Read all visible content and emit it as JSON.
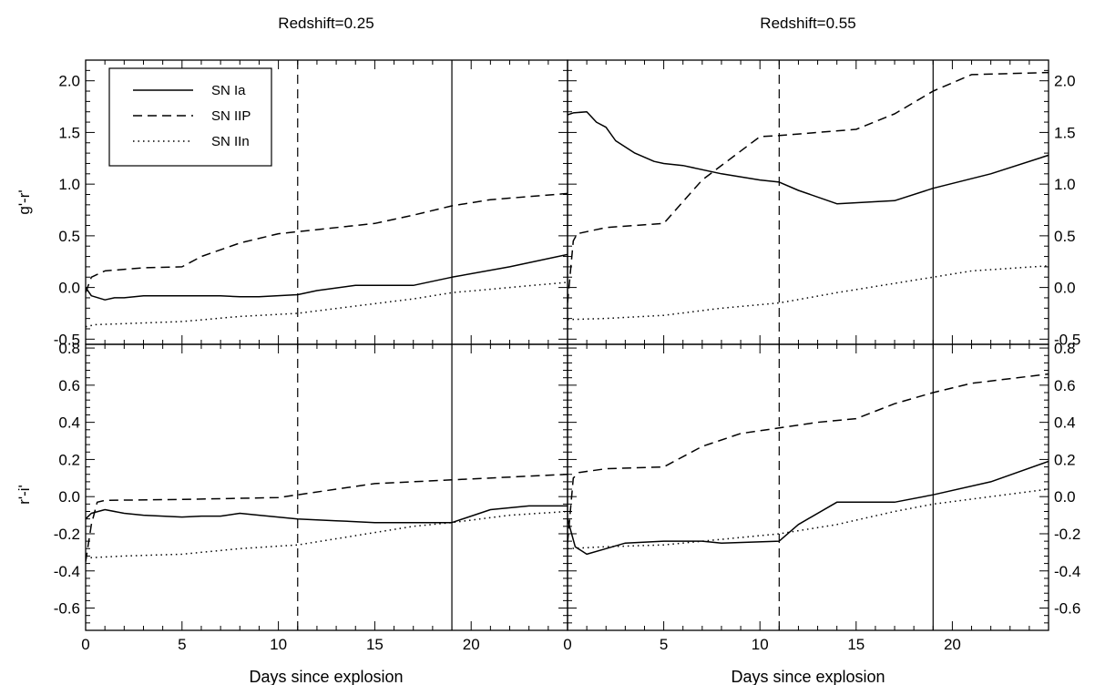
{
  "figure": {
    "title_left": "Redshift=0.25",
    "title_right": "Redshift=0.55",
    "xlabel": "Days since explosion",
    "ylabel_top": "g'-r'",
    "ylabel_bottom": "r'-i'",
    "legend": [
      "SN Ia",
      "SN IIP",
      "SN IIn"
    ]
  },
  "chart_data": [
    {
      "type": "line",
      "panel": "top-left",
      "title": "Redshift=0.25",
      "xlabel": "",
      "ylabel": "g'-r'",
      "xlim": [
        0,
        25
      ],
      "ylim": [
        -0.55,
        2.2
      ],
      "xticks": [
        0,
        5,
        10,
        15,
        20
      ],
      "xticklabels": [
        "",
        "",
        "",
        "",
        ""
      ],
      "yticks": [
        -0.5,
        0.0,
        0.5,
        1.0,
        1.5,
        2.0
      ],
      "yticklabels": [
        "-0.5",
        "0.0",
        "0.5",
        "1.0",
        "1.5",
        "2.0"
      ],
      "vlines": [
        {
          "x": 11,
          "style": "dashed"
        },
        {
          "x": 19,
          "style": "solid"
        }
      ],
      "legend": "top-left",
      "series": [
        {
          "name": "SN Ia",
          "style": "solid",
          "points": [
            [
              0,
              0.0
            ],
            [
              0.3,
              -0.08
            ],
            [
              1,
              -0.12
            ],
            [
              1.5,
              -0.1
            ],
            [
              2,
              -0.1
            ],
            [
              3,
              -0.08
            ],
            [
              5,
              -0.08
            ],
            [
              7,
              -0.08
            ],
            [
              8,
              -0.09
            ],
            [
              9,
              -0.09
            ],
            [
              11,
              -0.07
            ],
            [
              12,
              -0.03
            ],
            [
              14,
              0.02
            ],
            [
              17,
              0.02
            ],
            [
              19,
              0.1
            ],
            [
              22,
              0.2
            ],
            [
              25,
              0.32
            ]
          ]
        },
        {
          "name": "SN IIP",
          "style": "dashed",
          "points": [
            [
              0,
              -0.05
            ],
            [
              0.3,
              0.1
            ],
            [
              1,
              0.16
            ],
            [
              3,
              0.19
            ],
            [
              5,
              0.2
            ],
            [
              6,
              0.3
            ],
            [
              8,
              0.43
            ],
            [
              10,
              0.52
            ],
            [
              12,
              0.56
            ],
            [
              15,
              0.62
            ],
            [
              17,
              0.7
            ],
            [
              19,
              0.79
            ],
            [
              21,
              0.85
            ],
            [
              25,
              0.91
            ]
          ]
        },
        {
          "name": "SN IIn",
          "style": "dotted",
          "points": [
            [
              0,
              -0.38
            ],
            [
              0.5,
              -0.36
            ],
            [
              2,
              -0.35
            ],
            [
              5,
              -0.33
            ],
            [
              8,
              -0.28
            ],
            [
              11,
              -0.25
            ],
            [
              14,
              -0.18
            ],
            [
              17,
              -0.11
            ],
            [
              19,
              -0.05
            ],
            [
              22,
              0.0
            ],
            [
              25,
              0.05
            ]
          ]
        }
      ]
    },
    {
      "type": "line",
      "panel": "top-right",
      "title": "Redshift=0.55",
      "xlabel": "",
      "ylabel": "",
      "xlim": [
        0,
        25
      ],
      "ylim": [
        -0.55,
        2.2
      ],
      "xticks": [
        0,
        5,
        10,
        15,
        20
      ],
      "xticklabels": [
        "",
        "",
        "",
        "",
        ""
      ],
      "yticks": [
        -0.5,
        0.0,
        0.5,
        1.0,
        1.5,
        2.0
      ],
      "yticklabels": [
        "-0.5",
        "0.0",
        "0.5",
        "1.0",
        "1.5",
        "2.0"
      ],
      "vlines": [
        {
          "x": 11,
          "style": "dashed"
        },
        {
          "x": 19,
          "style": "solid"
        }
      ],
      "series": [
        {
          "name": "SN Ia",
          "style": "solid",
          "points": [
            [
              0,
              1.67
            ],
            [
              0.3,
              1.69
            ],
            [
              1,
              1.7
            ],
            [
              1.5,
              1.6
            ],
            [
              2,
              1.55
            ],
            [
              2.5,
              1.42
            ],
            [
              3.5,
              1.3
            ],
            [
              4.5,
              1.22
            ],
            [
              5,
              1.2
            ],
            [
              6,
              1.18
            ],
            [
              8,
              1.1
            ],
            [
              10,
              1.04
            ],
            [
              11,
              1.02
            ],
            [
              12,
              0.94
            ],
            [
              14,
              0.81
            ],
            [
              17,
              0.84
            ],
            [
              19,
              0.96
            ],
            [
              22,
              1.1
            ],
            [
              25,
              1.28
            ]
          ]
        },
        {
          "name": "SN IIP",
          "style": "dashed",
          "points": [
            [
              0,
              -0.15
            ],
            [
              0.3,
              0.45
            ],
            [
              0.5,
              0.52
            ],
            [
              2,
              0.58
            ],
            [
              5,
              0.62
            ],
            [
              7,
              1.04
            ],
            [
              9,
              1.32
            ],
            [
              10,
              1.46
            ],
            [
              11,
              1.47
            ],
            [
              15,
              1.53
            ],
            [
              17,
              1.68
            ],
            [
              19,
              1.9
            ],
            [
              21,
              2.06
            ],
            [
              25,
              2.08
            ]
          ]
        },
        {
          "name": "SN IIn",
          "style": "dotted",
          "points": [
            [
              0,
              -0.31
            ],
            [
              2,
              -0.3
            ],
            [
              5,
              -0.27
            ],
            [
              8,
              -0.2
            ],
            [
              11,
              -0.15
            ],
            [
              14,
              -0.05
            ],
            [
              17,
              0.04
            ],
            [
              19,
              0.1
            ],
            [
              21,
              0.16
            ],
            [
              25,
              0.21
            ]
          ]
        }
      ]
    },
    {
      "type": "line",
      "panel": "bottom-left",
      "xlabel": "Days since explosion",
      "ylabel": "r'-i'",
      "xlim": [
        0,
        25
      ],
      "ylim": [
        -0.72,
        0.82
      ],
      "xticks": [
        0,
        5,
        10,
        15,
        20
      ],
      "xticklabels": [
        "0",
        "5",
        "10",
        "15",
        "20"
      ],
      "yticks": [
        -0.6,
        -0.4,
        -0.2,
        0.0,
        0.2,
        0.4,
        0.6,
        0.8
      ],
      "yticklabels": [
        "-0.6",
        "-0.4",
        "-0.2",
        "0.0",
        "0.2",
        "0.4",
        "0.6",
        "0.8"
      ],
      "vlines": [
        {
          "x": 11,
          "style": "dashed"
        },
        {
          "x": 19,
          "style": "solid"
        }
      ],
      "series": [
        {
          "name": "SN Ia",
          "style": "solid",
          "points": [
            [
              0,
              -0.12
            ],
            [
              0.3,
              -0.09
            ],
            [
              1,
              -0.07
            ],
            [
              2,
              -0.09
            ],
            [
              3,
              -0.1
            ],
            [
              5,
              -0.11
            ],
            [
              6,
              -0.105
            ],
            [
              7,
              -0.105
            ],
            [
              8,
              -0.09
            ],
            [
              9,
              -0.1
            ],
            [
              11,
              -0.12
            ],
            [
              13,
              -0.13
            ],
            [
              15,
              -0.14
            ],
            [
              19,
              -0.14
            ],
            [
              21,
              -0.07
            ],
            [
              23,
              -0.05
            ],
            [
              25,
              -0.05
            ]
          ]
        },
        {
          "name": "SN IIP",
          "style": "dashed",
          "points": [
            [
              0,
              -0.35
            ],
            [
              0.3,
              -0.15
            ],
            [
              0.6,
              -0.03
            ],
            [
              1,
              -0.02
            ],
            [
              5,
              -0.015
            ],
            [
              10,
              -0.005
            ],
            [
              11,
              0.01
            ],
            [
              13,
              0.04
            ],
            [
              15,
              0.07
            ],
            [
              19,
              0.09
            ],
            [
              25,
              0.12
            ]
          ]
        },
        {
          "name": "SN IIn",
          "style": "dotted",
          "points": [
            [
              0,
              -0.33
            ],
            [
              2,
              -0.32
            ],
            [
              5,
              -0.31
            ],
            [
              8,
              -0.28
            ],
            [
              11,
              -0.26
            ],
            [
              14,
              -0.21
            ],
            [
              17,
              -0.16
            ],
            [
              19,
              -0.14
            ],
            [
              22,
              -0.1
            ],
            [
              25,
              -0.08
            ]
          ]
        }
      ]
    },
    {
      "type": "line",
      "panel": "bottom-right",
      "xlabel": "Days since explosion",
      "ylabel": "",
      "xlim": [
        0,
        25
      ],
      "ylim": [
        -0.72,
        0.82
      ],
      "xticks": [
        0,
        5,
        10,
        15,
        20
      ],
      "xticklabels": [
        "0",
        "5",
        "10",
        "15",
        "20"
      ],
      "yticks": [
        -0.6,
        -0.4,
        -0.2,
        0.0,
        0.2,
        0.4,
        0.6,
        0.8
      ],
      "yticklabels": [
        "-0.6",
        "-0.4",
        "-0.2",
        "0.0",
        "0.2",
        "0.4",
        "0.6",
        "0.8"
      ],
      "vlines": [
        {
          "x": 11,
          "style": "dashed"
        },
        {
          "x": 19,
          "style": "solid"
        }
      ],
      "series": [
        {
          "name": "SN Ia",
          "style": "solid",
          "points": [
            [
              0,
              -0.12
            ],
            [
              0.4,
              -0.27
            ],
            [
              1,
              -0.31
            ],
            [
              2,
              -0.28
            ],
            [
              3,
              -0.25
            ],
            [
              5,
              -0.24
            ],
            [
              7,
              -0.24
            ],
            [
              8,
              -0.25
            ],
            [
              11,
              -0.24
            ],
            [
              12,
              -0.15
            ],
            [
              14,
              -0.03
            ],
            [
              17,
              -0.03
            ],
            [
              19,
              0.01
            ],
            [
              22,
              0.08
            ],
            [
              25,
              0.19
            ]
          ]
        },
        {
          "name": "SN IIP",
          "style": "dashed",
          "points": [
            [
              0,
              -0.25
            ],
            [
              0.3,
              0.1
            ],
            [
              0.6,
              0.13
            ],
            [
              2,
              0.15
            ],
            [
              5,
              0.16
            ],
            [
              7,
              0.27
            ],
            [
              9,
              0.34
            ],
            [
              11,
              0.37
            ],
            [
              13,
              0.4
            ],
            [
              15,
              0.42
            ],
            [
              17,
              0.5
            ],
            [
              19,
              0.56
            ],
            [
              21,
              0.61
            ],
            [
              25,
              0.66
            ]
          ]
        },
        {
          "name": "SN IIn",
          "style": "dotted",
          "points": [
            [
              0,
              -0.28
            ],
            [
              2,
              -0.27
            ],
            [
              5,
              -0.26
            ],
            [
              8,
              -0.23
            ],
            [
              11,
              -0.2
            ],
            [
              14,
              -0.15
            ],
            [
              17,
              -0.08
            ],
            [
              19,
              -0.04
            ],
            [
              22,
              0.0
            ],
            [
              25,
              0.04
            ]
          ]
        }
      ]
    }
  ]
}
